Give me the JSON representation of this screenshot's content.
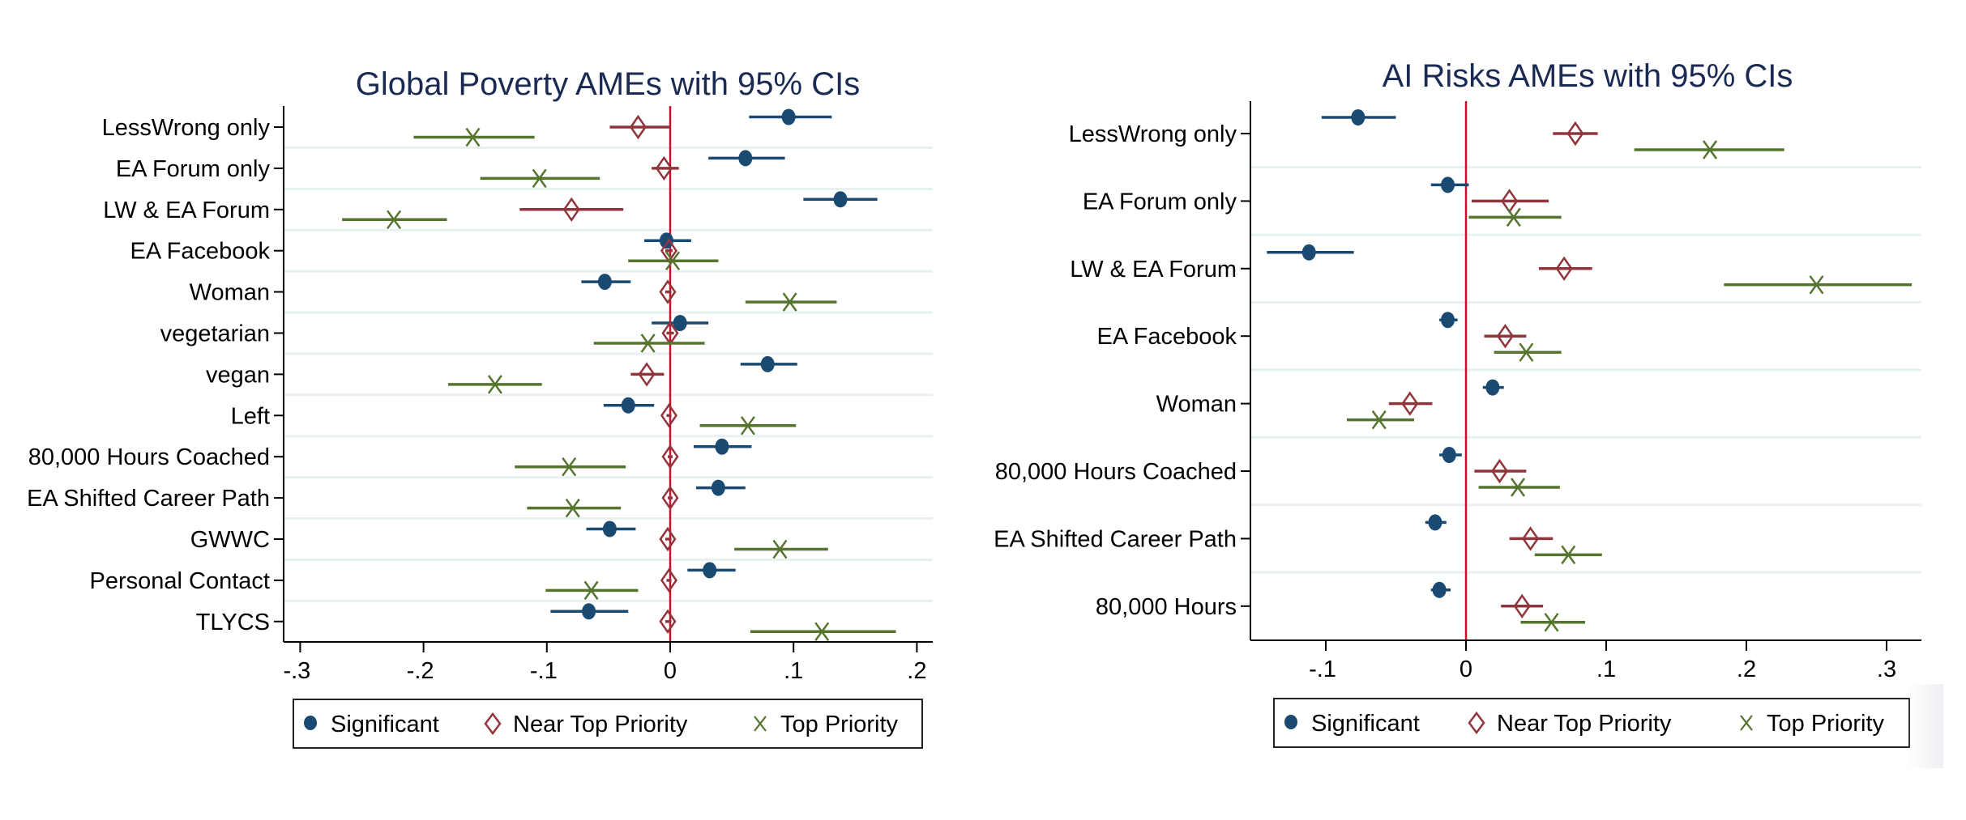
{
  "colors": {
    "significant": "#1a4a72",
    "near_top_priority": "#90353b",
    "top_priority": "#55752f",
    "zero_line": "#c8102e",
    "separator": "#e8f0f2",
    "title": "#1a2a52",
    "axis": "#000000"
  },
  "chart_data": [
    {
      "type": "scatter",
      "subtype": "coefficient-plot-horizontal-ci",
      "title": "Global Poverty AMEs with 95% CIs",
      "xlabel": "",
      "ylabel": "",
      "xlim": [
        -0.313,
        0.212
      ],
      "xticks": [
        -0.3,
        -0.2,
        -0.1,
        0,
        0.1,
        0.2
      ],
      "xtick_labels": [
        "-.3",
        "-.2",
        "-.1",
        "0",
        ".1",
        ".2"
      ],
      "reference_line_x": 0,
      "grid": false,
      "legend_position": "bottom",
      "categories": [
        "LessWrong only",
        "EA Forum only",
        "LW & EA Forum",
        "EA Facebook",
        "Woman",
        "vegetarian",
        "vegan",
        "Left",
        "80,000 Hours Coached",
        "EA Shifted Career Path",
        "GWWC",
        "Personal Contact",
        "TLYCS"
      ],
      "series": [
        {
          "name": "Significant",
          "marker": "circle",
          "values": [
            0.096,
            0.061,
            0.138,
            -0.003,
            -0.053,
            0.008,
            0.079,
            -0.034,
            0.042,
            0.039,
            -0.049,
            0.032,
            -0.066
          ],
          "ci_low": [
            0.064,
            0.031,
            0.108,
            -0.021,
            -0.072,
            -0.015,
            0.057,
            -0.054,
            0.019,
            0.021,
            -0.068,
            0.014,
            -0.097
          ],
          "ci_high": [
            0.131,
            0.093,
            0.168,
            0.017,
            -0.032,
            0.031,
            0.103,
            -0.013,
            0.066,
            0.061,
            -0.028,
            0.053,
            -0.034
          ]
        },
        {
          "name": "Near Top Priority",
          "marker": "diamond",
          "values": [
            -0.026,
            -0.005,
            -0.08,
            -0.001,
            -0.002,
            0.0,
            -0.019,
            -0.001,
            0.0,
            0.0,
            -0.002,
            -0.001,
            -0.002
          ],
          "ci_low": [
            -0.049,
            -0.015,
            -0.122,
            -0.004,
            -0.004,
            -0.003,
            -0.032,
            -0.003,
            -0.002,
            -0.002,
            -0.004,
            -0.003,
            -0.004
          ],
          "ci_high": [
            0.0,
            0.007,
            -0.038,
            0.002,
            0.001,
            0.003,
            -0.005,
            0.001,
            0.002,
            0.002,
            0.001,
            0.001,
            0.001
          ]
        },
        {
          "name": "Top Priority",
          "marker": "x",
          "values": [
            -0.16,
            -0.106,
            -0.224,
            0.002,
            0.097,
            -0.018,
            -0.142,
            0.063,
            -0.082,
            -0.079,
            0.089,
            -0.064,
            0.123
          ],
          "ci_low": [
            -0.208,
            -0.154,
            -0.266,
            -0.034,
            0.061,
            -0.062,
            -0.18,
            0.024,
            -0.126,
            -0.116,
            0.052,
            -0.101,
            0.065
          ],
          "ci_high": [
            -0.11,
            -0.057,
            -0.181,
            0.039,
            0.135,
            0.028,
            -0.104,
            0.102,
            -0.036,
            -0.04,
            0.128,
            -0.026,
            0.183
          ]
        }
      ]
    },
    {
      "type": "scatter",
      "subtype": "coefficient-plot-horizontal-ci",
      "title": "AI Risks AMEs with 95% CIs",
      "xlabel": "",
      "ylabel": "",
      "xlim": [
        -0.154,
        0.325
      ],
      "xticks": [
        -0.1,
        0,
        0.1,
        0.2,
        0.3
      ],
      "xtick_labels": [
        "-.1",
        "0",
        ".1",
        ".2",
        ".3"
      ],
      "reference_line_x": 0,
      "grid": false,
      "legend_position": "bottom",
      "categories": [
        "LessWrong only",
        "EA Forum only",
        "LW & EA Forum",
        "EA Facebook",
        "Woman",
        "80,000 Hours Coached",
        "EA Shifted Career Path",
        "80,000 Hours"
      ],
      "series": [
        {
          "name": "Significant",
          "marker": "circle",
          "values": [
            -0.077,
            -0.013,
            -0.112,
            -0.013,
            0.019,
            -0.012,
            -0.022,
            -0.019
          ],
          "ci_low": [
            -0.103,
            -0.025,
            -0.142,
            -0.019,
            0.012,
            -0.019,
            -0.029,
            -0.025
          ],
          "ci_high": [
            -0.05,
            0.002,
            -0.08,
            -0.006,
            0.027,
            -0.003,
            -0.014,
            -0.011
          ]
        },
        {
          "name": "Near Top Priority",
          "marker": "diamond",
          "values": [
            0.078,
            0.031,
            0.07,
            0.028,
            -0.04,
            0.024,
            0.046,
            0.04
          ],
          "ci_low": [
            0.062,
            0.004,
            0.052,
            0.013,
            -0.055,
            0.006,
            0.031,
            0.025
          ],
          "ci_high": [
            0.094,
            0.059,
            0.09,
            0.043,
            -0.024,
            0.043,
            0.062,
            0.055
          ]
        },
        {
          "name": "Top Priority",
          "marker": "x",
          "values": [
            0.174,
            0.034,
            0.25,
            0.043,
            -0.062,
            0.037,
            0.073,
            0.061
          ],
          "ci_low": [
            0.12,
            0.002,
            0.184,
            0.02,
            -0.085,
            0.009,
            0.049,
            0.039
          ],
          "ci_high": [
            0.227,
            0.068,
            0.318,
            0.068,
            -0.037,
            0.067,
            0.097,
            0.085
          ]
        }
      ]
    }
  ],
  "legend": {
    "items": [
      {
        "label": "Significant",
        "icon": "filled-circle-icon"
      },
      {
        "label": "Near Top Priority",
        "icon": "hollow-diamond-icon"
      },
      {
        "label": "Top Priority",
        "icon": "x-mark-icon"
      }
    ]
  }
}
